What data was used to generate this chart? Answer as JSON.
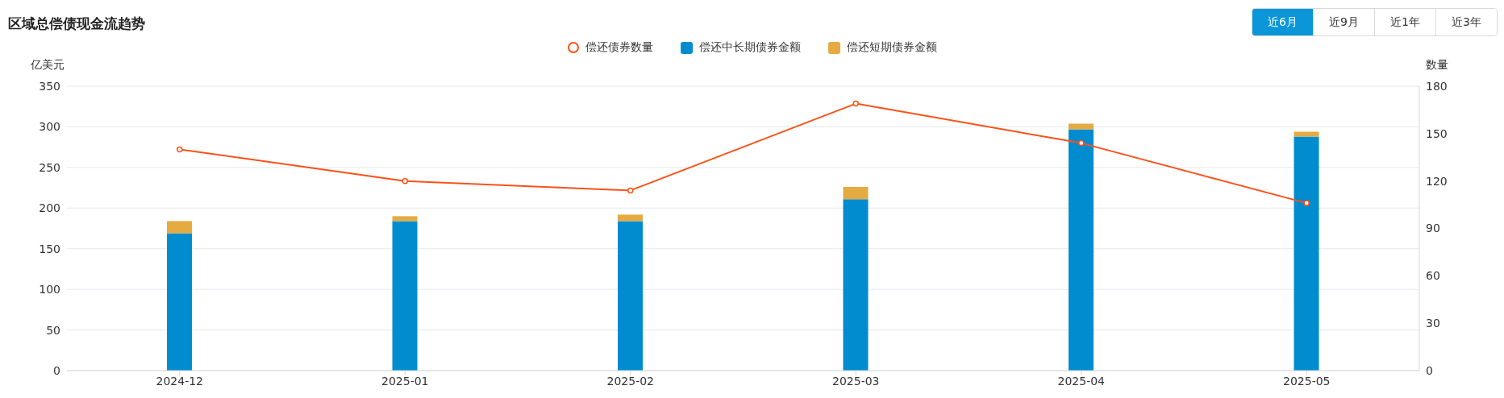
{
  "chart_data": {
    "type": "bar",
    "title": "区域总偿债现金流趋势",
    "ylabel": "亿美元",
    "y2label": "数量",
    "categories": [
      "2024-12",
      "2025-01",
      "2025-02",
      "2025-03",
      "2025-04",
      "2025-05"
    ],
    "stacked": true,
    "series": [
      {
        "name": "偿还债券数量",
        "type": "line",
        "axis": "y2",
        "color": "#fc5117",
        "values": [
          140,
          120,
          114,
          169,
          144,
          106
        ]
      },
      {
        "name": "偿还中长期债券金额",
        "color": "#008ccf",
        "values": [
          169,
          184,
          184,
          211,
          297,
          288
        ]
      },
      {
        "name": "偿还短期债券金额",
        "color": "#e5aa40",
        "values": [
          15,
          6,
          8,
          15,
          7,
          6
        ]
      }
    ],
    "ylim": [
      0,
      350
    ],
    "yticks": [
      0,
      50,
      100,
      150,
      200,
      250,
      300,
      350
    ],
    "y2lim": [
      0,
      180
    ],
    "y2ticks": [
      0,
      30,
      60,
      90,
      120,
      150,
      180
    ],
    "grid": "y",
    "legend": "top",
    "marker": "circle",
    "line_style": "solid",
    "annotations": [
      "近6月",
      "近9月",
      "近1年",
      "近3年"
    ]
  }
}
